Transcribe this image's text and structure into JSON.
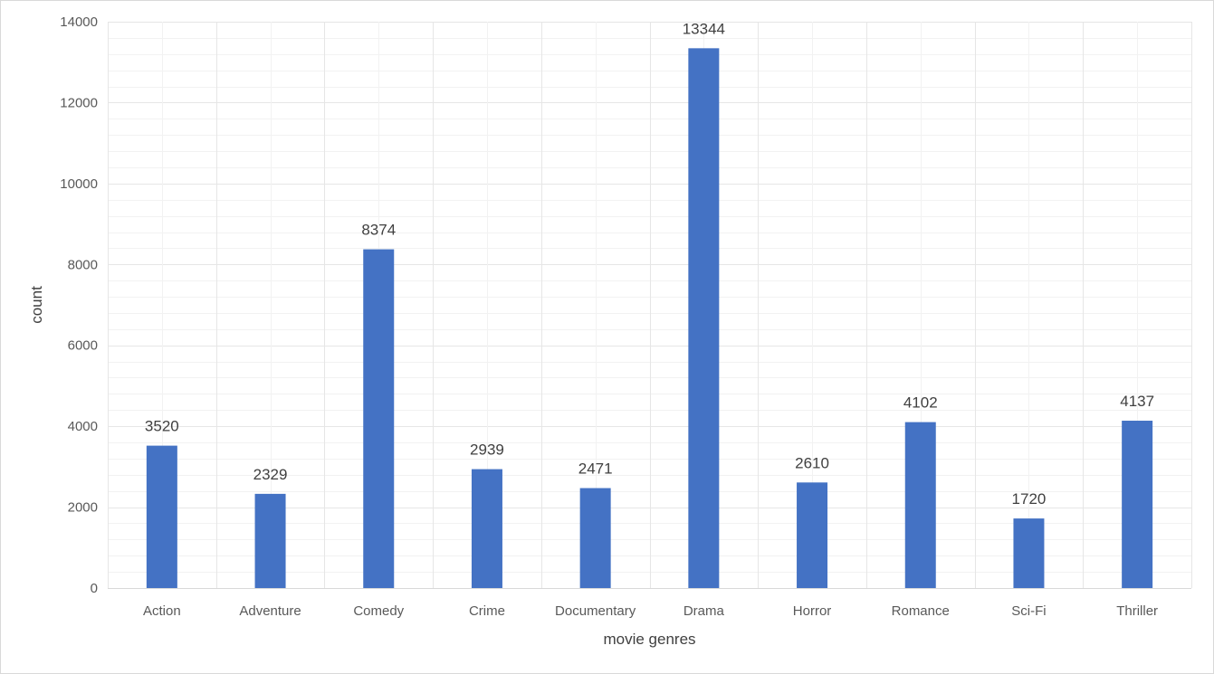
{
  "chart_data": {
    "type": "bar",
    "title": "",
    "xlabel": "movie genres",
    "ylabel": "count",
    "categories": [
      "Action",
      "Adventure",
      "Comedy",
      "Crime",
      "Documentary",
      "Drama",
      "Horror",
      "Romance",
      "Sci-Fi",
      "Thriller"
    ],
    "values": [
      3520,
      2329,
      8374,
      2939,
      2471,
      13344,
      2610,
      4102,
      1720,
      4137
    ],
    "ylim": [
      0,
      14000
    ],
    "yticks": [
      0,
      2000,
      4000,
      6000,
      8000,
      10000,
      12000,
      14000
    ],
    "grid": true,
    "data_labels": true,
    "legend": "none",
    "bar_color": "#4472c4",
    "gridline_color": "#e6e6e6",
    "minor_gridline_color": "#f2f2f2"
  }
}
